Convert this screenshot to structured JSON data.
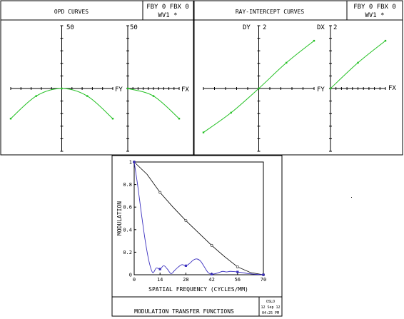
{
  "colors": {
    "frame": "#000000",
    "ray": "#22c022",
    "mtf_tangential": "#3a2fbf",
    "mtf_sagittal": "#000000"
  },
  "opd_panel": {
    "title": "OPD CURVES",
    "field_label": "FBY 0 FBX 0",
    "wave_label": "WV1 *",
    "left_plot": {
      "scale_label": "50",
      "axis_label": "FY"
    },
    "right_plot": {
      "scale_label": "50",
      "axis_label": "FX"
    }
  },
  "ray_panel": {
    "title": "RAY-INTERCEPT CURVES",
    "field_label": "FBY 0 FBX 0",
    "wave_label": "WV1 *",
    "left_plot": {
      "axis_name": "DY",
      "scale_label": "2",
      "axis_label": "FY"
    },
    "right_plot": {
      "axis_name": "DX",
      "scale_label": "2",
      "axis_label": "FX"
    }
  },
  "mtf_panel": {
    "title": "MODULATION TRANSFER FUNCTIONS",
    "stamp": {
      "program": "OSLO",
      "date": "12 Sep 12",
      "time": "04:25 PM"
    }
  },
  "chart_data": [
    {
      "type": "line",
      "title": "OPD CURVES",
      "xlabel": "FY",
      "ylabel": "",
      "xlim": [
        -1,
        1
      ],
      "ylim": [
        -50,
        50
      ],
      "series": [
        {
          "x": [
            -1,
            -0.5,
            0,
            0.5,
            1
          ],
          "y": [
            -24,
            -6,
            0,
            -6,
            -24
          ]
        }
      ]
    },
    {
      "type": "line",
      "title": "",
      "xlabel": "FX",
      "ylabel": "",
      "xlim": [
        0,
        1
      ],
      "ylim": [
        -50,
        50
      ],
      "series": [
        {
          "x": [
            0,
            0.5,
            1
          ],
          "y": [
            0,
            -6,
            -24
          ]
        }
      ]
    },
    {
      "type": "line",
      "title": "RAY-INTERCEPT CURVES",
      "xlabel": "FY",
      "ylabel": "DY",
      "xlim": [
        -1,
        1
      ],
      "ylim": [
        -2,
        2
      ],
      "series": [
        {
          "x": [
            -1,
            -0.5,
            0,
            0.5,
            1
          ],
          "y": [
            -1.4,
            -0.77,
            0,
            0.82,
            1.52
          ]
        }
      ]
    },
    {
      "type": "line",
      "title": "",
      "xlabel": "FX",
      "ylabel": "DX",
      "xlim": [
        0,
        1
      ],
      "ylim": [
        -2,
        2
      ],
      "series": [
        {
          "x": [
            0,
            0.5,
            1
          ],
          "y": [
            0,
            0.82,
            1.52
          ]
        }
      ]
    },
    {
      "type": "line",
      "title": "MODULATION TRANSFER FUNCTIONS",
      "xlabel": "SPATIAL FREQUENCY (CYCLES/MM)",
      "ylabel": "MODULATION",
      "xlim": [
        0,
        70
      ],
      "ylim": [
        0,
        1
      ],
      "xticks": [
        "0",
        "14",
        "28",
        "42",
        "56",
        "70"
      ],
      "yticks": [
        "0",
        "0.2",
        "0.4",
        "0.6",
        "0.8",
        "1"
      ],
      "series": [
        {
          "x": [
            0,
            7,
            14,
            21,
            28,
            35,
            42,
            49,
            56,
            63,
            70
          ],
          "y": [
            1,
            0.89,
            0.73,
            0.6,
            0.48,
            0.37,
            0.26,
            0.16,
            0.07,
            0.02,
            0
          ]
        },
        {
          "x": [
            0,
            2,
            4,
            6,
            8,
            10,
            12,
            14,
            16,
            18,
            20,
            22,
            24,
            26,
            28,
            30,
            32,
            34,
            36,
            38,
            40,
            42,
            44,
            46,
            48,
            50,
            52,
            54,
            56,
            58,
            60,
            62,
            64,
            66,
            68,
            70
          ],
          "y": [
            1,
            0.78,
            0.53,
            0.3,
            0.12,
            0.02,
            0.06,
            0.05,
            0.08,
            0.05,
            0.01,
            0.04,
            0.07,
            0.09,
            0.08,
            0.1,
            0.13,
            0.14,
            0.12,
            0.07,
            0.02,
            0.005,
            0.01,
            0.02,
            0.03,
            0.025,
            0.03,
            0.028,
            0.025,
            0.02,
            0.015,
            0.01,
            0.007,
            0.004,
            0.002,
            0
          ]
        }
      ]
    }
  ]
}
